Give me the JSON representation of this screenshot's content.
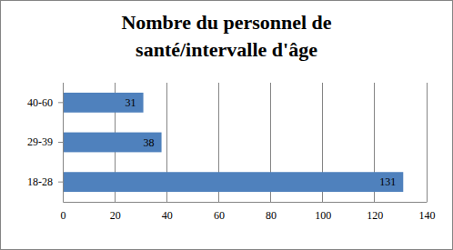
{
  "chart_data": {
    "type": "bar",
    "title": "Nombre du personnel de santé/intervalle d'âge",
    "orientation": "horizontal",
    "categories": [
      "18-28",
      "29-39",
      "40-60"
    ],
    "values": [
      131,
      38,
      31
    ],
    "color": "#4f81bd",
    "xlim": [
      0,
      140
    ],
    "xticks": [
      0,
      20,
      40,
      60,
      80,
      100,
      120,
      140
    ],
    "grid": true,
    "data_labels": true
  }
}
